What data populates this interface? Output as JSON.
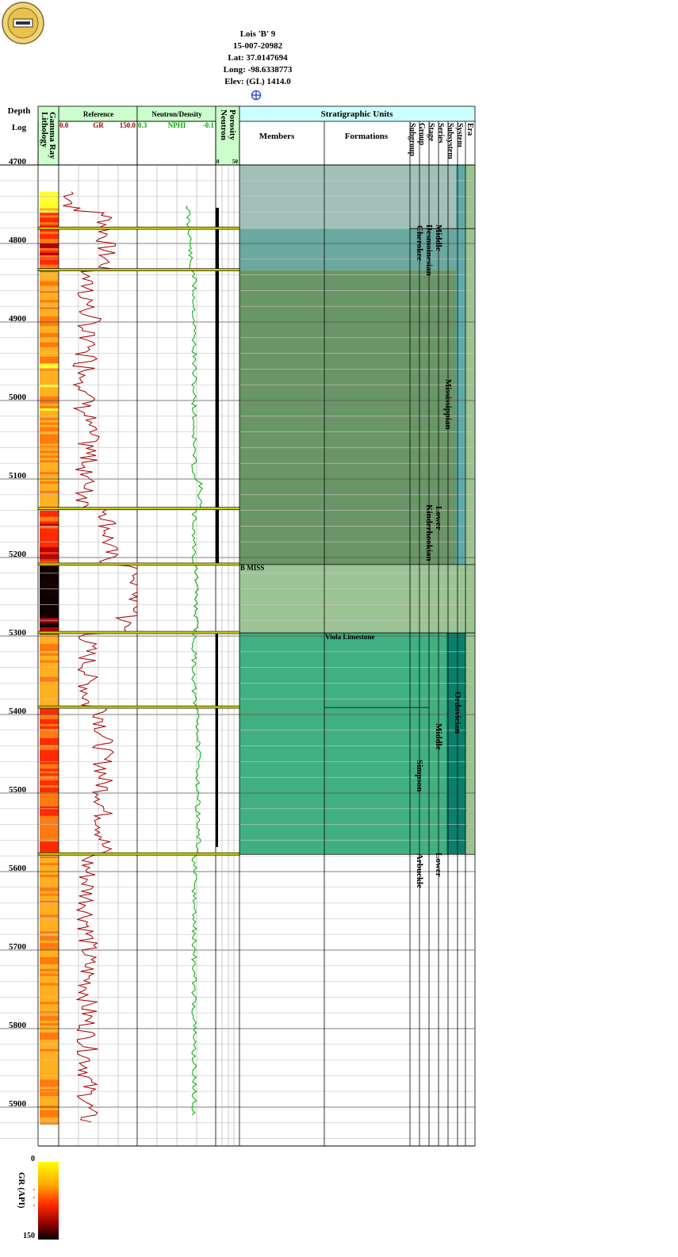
{
  "well": {
    "name": "Lois 'B' 9",
    "api": "15-007-20982",
    "lat": "Lat: 37.0147694",
    "long": "Long: -98.6338773",
    "elev": "Elev: (GL) 1414.0"
  },
  "headers": {
    "depth": "Depth",
    "log": "Log",
    "lithology": "Lithology",
    "gamma_ray": "Gamma Ray",
    "reference": "Reference",
    "gr_min": "0.0",
    "gr_label": "GR",
    "gr_max": "150.0",
    "neutron_density": "Neutron/Density",
    "nphi_min": "0.3",
    "nphi_label": "NPHI",
    "nphi_max": "-0.1",
    "porosity": "Porosity",
    "neutron": "Neutron",
    "por_min": "0",
    "por_max": "50",
    "strat_units": "Stratigraphic Units",
    "members": "Members",
    "formations": "Formations",
    "rank_cols": [
      "Subgroup",
      "Group",
      "Stage",
      "Series",
      "Subsystem",
      "System",
      "Era"
    ]
  },
  "depth_ticks": [
    "4700",
    "4800",
    "4900",
    "5000",
    "5100",
    "5200",
    "5300",
    "5400",
    "5500",
    "5600",
    "5700",
    "5800",
    "5900"
  ],
  "depth_range": [
    4700,
    5930
  ],
  "tops": [
    4781,
    4834,
    5138,
    5209,
    5296,
    5391,
    5578
  ],
  "units": {
    "member": "B MISS",
    "formation": "Viola Limestone",
    "groups": [
      "Cherokee",
      "Simpson",
      "Arbuckle"
    ],
    "stages": [
      "Desmoinesian",
      "Kinderhookian"
    ],
    "series": [
      "Middle",
      "Lower",
      "Middle",
      "Lower"
    ],
    "systems": [
      "Mississippian",
      "Ordovician"
    ]
  },
  "legend": {
    "label": "GR (API)",
    "min": "0",
    "max": "150"
  },
  "colors": {
    "gr_curve": "#a40000",
    "nphi_curve": "#00aa00",
    "track_header": "#ccffcc",
    "strat_header": "#ccffff",
    "band_1": "#a0c0b8",
    "band_2": "#6aa8a0",
    "band_3": "#6a9566",
    "band_4": "#9cc494",
    "band_5": "#40b080",
    "era_col": "#9cc490",
    "subsystem_col": "#5faaa6",
    "ord_col": "#08806a"
  }
}
